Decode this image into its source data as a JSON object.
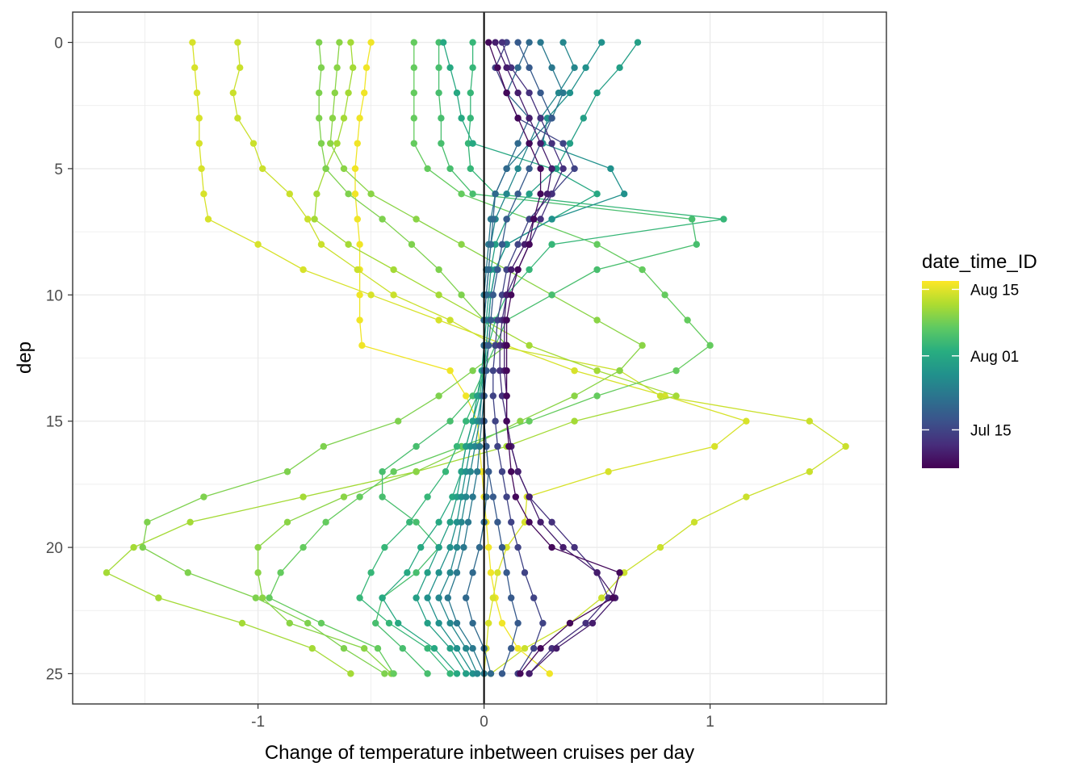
{
  "chart_data": {
    "type": "line",
    "xlabel": "Change of temperature inbetween cruises per day",
    "ylabel": "dep",
    "xlim": [
      -1.82,
      1.78
    ],
    "ylim": [
      26.2,
      -1.2
    ],
    "y_reversed": true,
    "x_ticks": [
      -1,
      0,
      1
    ],
    "x_tick_labels": [
      "-1",
      "0",
      "1"
    ],
    "y_ticks": [
      0,
      5,
      10,
      15,
      20,
      25
    ],
    "y_tick_labels": [
      "0",
      "5",
      "10",
      "15",
      "20",
      "25"
    ],
    "vertical_reference_line_x": 0,
    "grid": true,
    "theme": "bw",
    "legend": {
      "title": "date_time_ID",
      "position": "right",
      "type": "colorbar",
      "palette": "viridis",
      "min_label_value": "Jul 08",
      "max_label_value": "Aug 18",
      "labels": [
        "Aug 15",
        "Aug 01",
        "Jul 15"
      ],
      "label_positions_0to1": [
        0.955,
        0.6,
        0.205
      ]
    },
    "depths": [
      0,
      1,
      2,
      3,
      4,
      5,
      6,
      7,
      8,
      9,
      10,
      11,
      12,
      13,
      14,
      15,
      16,
      17,
      18,
      19,
      20,
      21,
      22,
      23,
      24,
      25
    ],
    "series": [
      {
        "color_value": 0.98,
        "values": [
          -0.5,
          -0.52,
          -0.53,
          -0.55,
          -0.56,
          -0.57,
          -0.57,
          -0.56,
          -0.55,
          -0.55,
          -0.55,
          -0.55,
          -0.54,
          -0.15,
          -0.08,
          -0.03,
          -0.02,
          -0.01,
          0.0,
          0.01,
          0.02,
          0.03,
          0.05,
          0.08,
          0.15,
          0.29
        ]
      },
      {
        "color_value": 0.94,
        "values": [
          -1.29,
          -1.28,
          -1.27,
          -1.26,
          -1.26,
          -1.25,
          -1.24,
          -1.22,
          -1.0,
          -0.8,
          -0.5,
          -0.2,
          0.1,
          0.4,
          0.8,
          1.16,
          1.02,
          0.55,
          0.19,
          0.18,
          0.1,
          0.06,
          0.04,
          0.02,
          0.01,
          0.0
        ]
      },
      {
        "color_value": 0.92,
        "values": [
          -1.09,
          -1.08,
          -1.11,
          -1.09,
          -1.02,
          -0.98,
          -0.86,
          -0.78,
          -0.72,
          -0.56,
          -0.4,
          -0.15,
          0.05,
          0.6,
          0.78,
          1.44,
          1.6,
          1.44,
          1.16,
          0.93,
          0.78,
          0.62,
          0.52,
          0.38,
          0.18,
          0.03
        ]
      },
      {
        "color_value": 0.86,
        "values": [
          -0.59,
          -0.58,
          -0.6,
          -0.62,
          -0.65,
          -0.7,
          -0.74,
          -0.75,
          -0.6,
          -0.4,
          -0.2,
          0.0,
          0.2,
          0.5,
          0.85,
          0.4,
          0.1,
          -0.3,
          -0.8,
          -1.3,
          -1.55,
          -1.67,
          -1.44,
          -1.07,
          -0.76,
          -0.59
        ]
      },
      {
        "color_value": 0.8,
        "values": [
          -0.73,
          -0.72,
          -0.73,
          -0.73,
          -0.72,
          -0.7,
          -0.6,
          -0.45,
          -0.32,
          -0.2,
          -0.1,
          0.0,
          0.1,
          -0.05,
          -0.2,
          -0.38,
          -0.71,
          -0.87,
          -1.24,
          -1.49,
          -1.51,
          -1.31,
          -1.01,
          -0.78,
          -0.62,
          -0.44
        ]
      },
      {
        "color_value": 0.82,
        "values": [
          -0.64,
          -0.65,
          -0.66,
          -0.67,
          -0.68,
          -0.62,
          -0.5,
          -0.3,
          -0.1,
          0.1,
          0.3,
          0.5,
          0.7,
          0.6,
          0.4,
          0.16,
          -0.06,
          -0.3,
          -0.62,
          -0.87,
          -1.0,
          -1.0,
          -0.98,
          -0.86,
          -0.53,
          -0.41
        ]
      },
      {
        "color_value": 0.76,
        "values": [
          -0.31,
          -0.31,
          -0.31,
          -0.31,
          -0.31,
          -0.25,
          -0.1,
          0.2,
          0.5,
          0.7,
          0.8,
          0.9,
          1.0,
          0.85,
          0.5,
          0.2,
          -0.1,
          -0.4,
          -0.55,
          -0.7,
          -0.8,
          -0.9,
          -0.95,
          -0.72,
          -0.47,
          -0.4
        ]
      },
      {
        "color_value": 0.7,
        "values": [
          -0.2,
          -0.2,
          -0.2,
          -0.19,
          -0.19,
          -0.15,
          -0.05,
          0.92,
          0.94,
          0.5,
          0.3,
          0.1,
          0.05,
          0.0,
          -0.05,
          -0.15,
          -0.3,
          -0.45,
          -0.45,
          -0.3,
          -0.2,
          -0.3,
          -0.45,
          -0.48,
          -0.36,
          -0.25
        ]
      },
      {
        "color_value": 0.66,
        "values": [
          -0.05,
          -0.05,
          -0.06,
          -0.06,
          -0.07,
          -0.06,
          0.05,
          1.06,
          0.3,
          0.2,
          0.1,
          0.05,
          0.02,
          0.0,
          -0.03,
          -0.08,
          -0.12,
          -0.17,
          -0.25,
          -0.33,
          -0.44,
          -0.5,
          -0.55,
          -0.42,
          -0.25,
          -0.15
        ]
      },
      {
        "color_value": 0.6,
        "values": [
          -0.18,
          -0.15,
          -0.12,
          -0.1,
          -0.05,
          0.3,
          0.5,
          0.3,
          0.1,
          0.05,
          0.03,
          0.02,
          0.01,
          0.0,
          -0.02,
          -0.05,
          -0.08,
          -0.1,
          -0.14,
          -0.2,
          -0.28,
          -0.34,
          -0.45,
          -0.38,
          -0.22,
          -0.12
        ]
      },
      {
        "color_value": 0.56,
        "values": [
          0.68,
          0.6,
          0.5,
          0.44,
          0.38,
          0.32,
          0.2,
          0.1,
          0.05,
          0.03,
          0.02,
          0.01,
          0.0,
          -0.01,
          -0.03,
          -0.05,
          -0.08,
          -0.1,
          -0.12,
          -0.15,
          -0.2,
          -0.25,
          -0.3,
          -0.25,
          -0.15,
          -0.08
        ]
      },
      {
        "color_value": 0.5,
        "values": [
          0.52,
          0.45,
          0.38,
          0.28,
          0.26,
          0.56,
          0.62,
          0.3,
          0.1,
          0.05,
          0.03,
          0.02,
          0.01,
          0.0,
          -0.01,
          -0.03,
          -0.06,
          -0.08,
          -0.1,
          -0.12,
          -0.15,
          -0.2,
          -0.25,
          -0.2,
          -0.12,
          -0.05
        ]
      },
      {
        "color_value": 0.46,
        "values": [
          0.35,
          0.4,
          0.33,
          0.25,
          0.2,
          0.15,
          0.1,
          0.05,
          0.03,
          0.02,
          0.01,
          0.0,
          0.0,
          0.0,
          -0.01,
          -0.02,
          -0.04,
          -0.06,
          -0.08,
          -0.1,
          -0.12,
          -0.15,
          -0.2,
          -0.15,
          -0.08,
          -0.03
        ]
      },
      {
        "color_value": 0.4,
        "values": [
          0.25,
          0.3,
          0.35,
          0.3,
          0.2,
          0.1,
          0.05,
          0.03,
          0.02,
          0.01,
          0.0,
          0.0,
          0.0,
          0.0,
          0.0,
          -0.01,
          -0.02,
          -0.03,
          -0.05,
          -0.07,
          -0.09,
          -0.12,
          -0.16,
          -0.12,
          -0.05,
          0.0
        ]
      },
      {
        "color_value": 0.34,
        "values": [
          0.2,
          0.15,
          0.1,
          0.2,
          0.15,
          0.1,
          0.05,
          0.04,
          0.03,
          0.02,
          0.01,
          0.0,
          0.0,
          0.0,
          0.0,
          0.0,
          0.01,
          0.02,
          0.01,
          0.0,
          -0.02,
          -0.05,
          -0.08,
          -0.05,
          0.0,
          0.03
        ]
      },
      {
        "color_value": 0.28,
        "values": [
          0.15,
          0.2,
          0.25,
          0.3,
          0.25,
          0.2,
          0.15,
          0.1,
          0.08,
          0.06,
          0.04,
          0.03,
          0.02,
          0.01,
          0.0,
          0.0,
          0.01,
          0.02,
          0.04,
          0.06,
          0.08,
          0.1,
          0.12,
          0.15,
          0.12,
          0.08
        ]
      },
      {
        "color_value": 0.2,
        "values": [
          0.1,
          0.05,
          0.1,
          0.15,
          0.35,
          0.4,
          0.3,
          0.2,
          0.15,
          0.1,
          0.08,
          0.06,
          0.05,
          0.04,
          0.04,
          0.05,
          0.06,
          0.08,
          0.1,
          0.12,
          0.15,
          0.18,
          0.22,
          0.26,
          0.22,
          0.15
        ]
      },
      {
        "color_value": 0.14,
        "values": [
          0.08,
          0.12,
          0.2,
          0.25,
          0.3,
          0.35,
          0.3,
          0.25,
          0.2,
          0.15,
          0.1,
          0.08,
          0.07,
          0.07,
          0.08,
          0.1,
          0.12,
          0.15,
          0.2,
          0.3,
          0.4,
          0.5,
          0.55,
          0.45,
          0.3,
          0.2
        ]
      },
      {
        "color_value": 0.08,
        "values": [
          0.05,
          0.1,
          0.15,
          0.2,
          0.25,
          0.3,
          0.28,
          0.22,
          0.18,
          0.12,
          0.1,
          0.09,
          0.09,
          0.09,
          0.1,
          0.1,
          0.12,
          0.15,
          0.2,
          0.25,
          0.35,
          0.5,
          0.58,
          0.48,
          0.32,
          0.2
        ]
      },
      {
        "color_value": 0.02,
        "values": [
          0.02,
          0.06,
          0.1,
          0.15,
          0.2,
          0.25,
          0.25,
          0.22,
          0.2,
          0.15,
          0.12,
          0.1,
          0.1,
          0.1,
          0.1,
          0.1,
          0.11,
          0.12,
          0.14,
          0.2,
          0.3,
          0.6,
          0.57,
          0.38,
          0.25,
          0.16
        ]
      }
    ]
  }
}
